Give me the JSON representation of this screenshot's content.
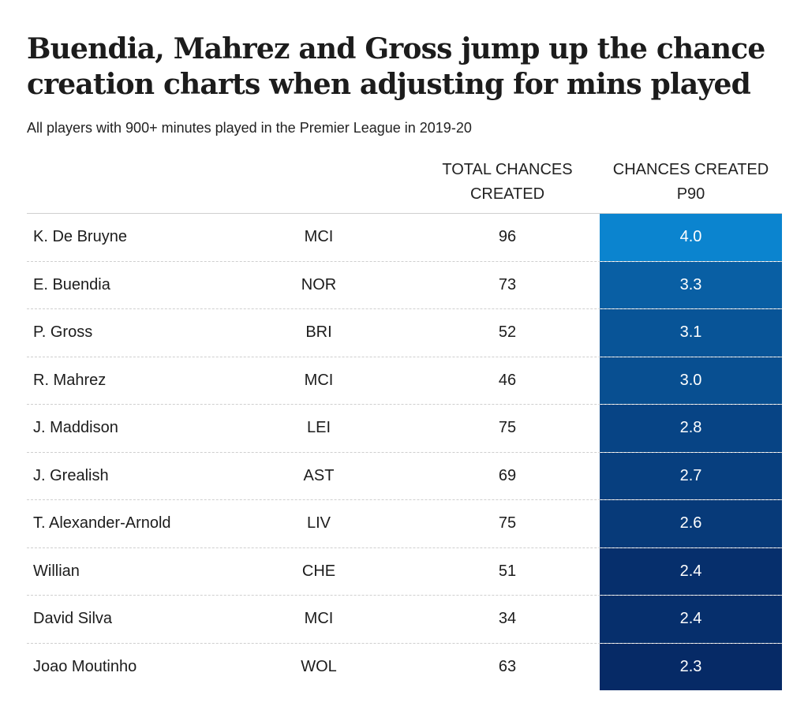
{
  "title": "Buendia, Mahrez and Gross jump up the chance creation charts when adjusting for mins played",
  "subtitle": "All players with 900+ minutes played in the Premier League in 2019-20",
  "columns": {
    "total": "TOTAL CHANCES CREATED",
    "p90": "CHANCES CREATED P90"
  },
  "colors": {
    "high": "#0b84cf",
    "low": "#062a66"
  },
  "chart_data": {
    "type": "table",
    "title": "Buendia, Mahrez and Gross jump up the chance creation charts when adjusting for mins played",
    "subtitle": "All players with 900+ minutes played in the Premier League in 2019-20",
    "columns": [
      "",
      "",
      "TOTAL CHANCES CREATED",
      "CHANCES CREATED P90"
    ],
    "rows": [
      {
        "player": "K. De Bruyne",
        "team": "MCI",
        "total": "96",
        "p90": "4.0"
      },
      {
        "player": "E. Buendia",
        "team": "NOR",
        "total": "73",
        "p90": "3.3"
      },
      {
        "player": "P. Gross",
        "team": "BRI",
        "total": "52",
        "p90": "3.1"
      },
      {
        "player": "R. Mahrez",
        "team": "MCI",
        "total": "46",
        "p90": "3.0"
      },
      {
        "player": "J. Maddison",
        "team": "LEI",
        "total": "75",
        "p90": "2.8"
      },
      {
        "player": "J. Grealish",
        "team": "AST",
        "total": "69",
        "p90": "2.7"
      },
      {
        "player": "T. Alexander-Arnold",
        "team": "LIV",
        "total": "75",
        "p90": "2.6"
      },
      {
        "player": "Willian",
        "team": "CHE",
        "total": "51",
        "p90": "2.4"
      },
      {
        "player": "David Silva",
        "team": "MCI",
        "total": "34",
        "p90": "2.4"
      },
      {
        "player": "Joao Moutinho",
        "team": "WOL",
        "total": "63",
        "p90": "2.3"
      }
    ]
  }
}
